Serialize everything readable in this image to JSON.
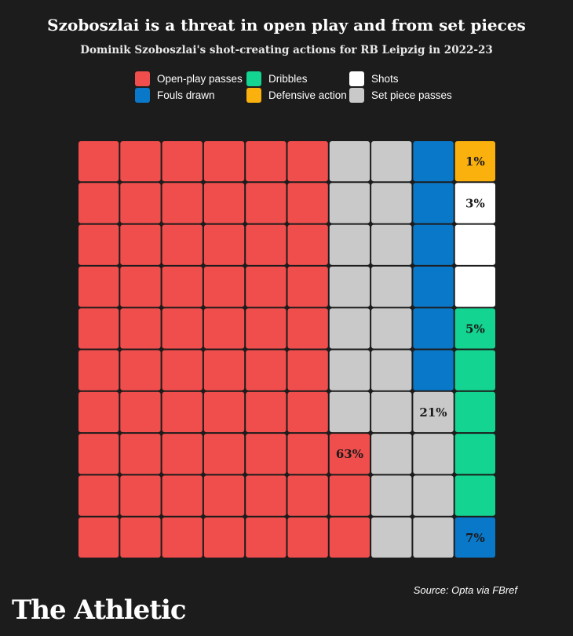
{
  "title": "Szoboszlai is a threat in open play and from set pieces",
  "subtitle": "Dominik Szoboszlai's shot-creating actions for RB Leipzig in 2022-23",
  "source": "Source: Opta via FBref",
  "logo": "The Athletic",
  "chart_data": {
    "type": "waffle",
    "grid_rows": 10,
    "grid_cols": 10,
    "categories": [
      {
        "key": "open_play",
        "label": "Open-play passes",
        "color": "#f04d4d",
        "value": 63,
        "label_text": "63%"
      },
      {
        "key": "set_piece",
        "label": "Set piece passes",
        "color": "#c9c9c9",
        "value": 21,
        "label_text": "21%"
      },
      {
        "key": "fouls",
        "label": "Fouls drawn",
        "color": "#0a78c8",
        "value": 7,
        "label_text": "7%"
      },
      {
        "key": "dribbles",
        "label": "Dribbles",
        "color": "#13d490",
        "value": 5,
        "label_text": "5%"
      },
      {
        "key": "shots",
        "label": "Shots",
        "color": "#ffffff",
        "value": 3,
        "label_text": "3%"
      },
      {
        "key": "defensive",
        "label": "Defensive action",
        "color": "#fbb10d",
        "value": 1,
        "label_text": "1%"
      }
    ],
    "legend_order": [
      "open_play",
      "dribbles",
      "shots",
      "fouls",
      "defensive",
      "set_piece"
    ],
    "legend_placement": "top-center",
    "cells": [
      [
        "open_play",
        "open_play",
        "open_play",
        "open_play",
        "open_play",
        "open_play",
        "set_piece",
        "set_piece",
        "fouls",
        "defensive"
      ],
      [
        "open_play",
        "open_play",
        "open_play",
        "open_play",
        "open_play",
        "open_play",
        "set_piece",
        "set_piece",
        "fouls",
        "shots"
      ],
      [
        "open_play",
        "open_play",
        "open_play",
        "open_play",
        "open_play",
        "open_play",
        "set_piece",
        "set_piece",
        "fouls",
        "shots"
      ],
      [
        "open_play",
        "open_play",
        "open_play",
        "open_play",
        "open_play",
        "open_play",
        "set_piece",
        "set_piece",
        "fouls",
        "shots"
      ],
      [
        "open_play",
        "open_play",
        "open_play",
        "open_play",
        "open_play",
        "open_play",
        "set_piece",
        "set_piece",
        "fouls",
        "dribbles"
      ],
      [
        "open_play",
        "open_play",
        "open_play",
        "open_play",
        "open_play",
        "open_play",
        "set_piece",
        "set_piece",
        "fouls",
        "dribbles"
      ],
      [
        "open_play",
        "open_play",
        "open_play",
        "open_play",
        "open_play",
        "open_play",
        "set_piece",
        "set_piece",
        "set_piece",
        "dribbles"
      ],
      [
        "open_play",
        "open_play",
        "open_play",
        "open_play",
        "open_play",
        "open_play",
        "open_play",
        "set_piece",
        "set_piece",
        "dribbles"
      ],
      [
        "open_play",
        "open_play",
        "open_play",
        "open_play",
        "open_play",
        "open_play",
        "open_play",
        "set_piece",
        "set_piece",
        "dribbles"
      ],
      [
        "open_play",
        "open_play",
        "open_play",
        "open_play",
        "open_play",
        "open_play",
        "open_play",
        "set_piece",
        "set_piece",
        "fouls"
      ]
    ],
    "cell_labels": [
      {
        "row": 0,
        "col": 9,
        "category": "defensive"
      },
      {
        "row": 1,
        "col": 9,
        "category": "shots"
      },
      {
        "row": 4,
        "col": 9,
        "category": "dribbles"
      },
      {
        "row": 6,
        "col": 8,
        "category": "set_piece"
      },
      {
        "row": 7,
        "col": 6,
        "category": "open_play"
      },
      {
        "row": 9,
        "col": 9,
        "category": "fouls"
      }
    ]
  }
}
